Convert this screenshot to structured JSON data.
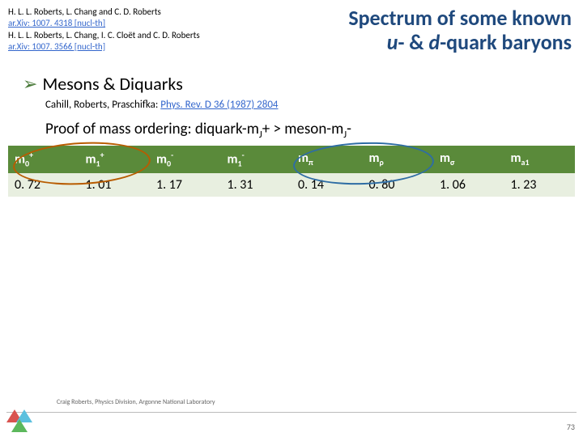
{
  "references": {
    "line1": "H. L. L. Roberts, L. Chang and C. D. Roberts",
    "link1": "ar.Xiv: 1007. 4318 [nucl-th]",
    "line2": "H. L. L. Roberts, L. Chang, I. C. Cloët and C. D. Roberts",
    "link2": "ar.Xiv: 1007. 3566 [nucl-th]"
  },
  "title": {
    "line1": "Spectrum of some known",
    "u": "u",
    "dash1": "- & ",
    "d": "d",
    "rest": "-quark baryons"
  },
  "bullet": {
    "text": "Mesons & Diquarks"
  },
  "subref": {
    "authors": "Cahill, Roberts, Praschifka: ",
    "cite": "Phys. Rev. D 36 (1987) 2804"
  },
  "proof": "Proof of mass ordering: diquark-m",
  "proof_sub1": "J",
  "proof_mid": "+ > meson-m",
  "proof_sub2": "J",
  "proof_end": "-",
  "table": {
    "headers": [
      {
        "base": "m",
        "sub": "0",
        "sup": "+"
      },
      {
        "base": "m",
        "sub": "1",
        "sup": "+"
      },
      {
        "base": "m",
        "sub": "0",
        "sup": "-"
      },
      {
        "base": "m",
        "sub": "1",
        "sup": "-"
      },
      {
        "base": "m",
        "sub": "π",
        "sup": ""
      },
      {
        "base": "m",
        "sub": "ρ",
        "sup": ""
      },
      {
        "base": "m",
        "sub": "σ",
        "sup": ""
      },
      {
        "base": "m",
        "sub": "a1",
        "sup": ""
      }
    ],
    "row": [
      "0. 72",
      "1. 01",
      "1. 17",
      "1. 31",
      "0. 14",
      "0. 80",
      "1. 06",
      "1. 23"
    ],
    "header_bg": "#5a8a3a",
    "header_fg": "#ffffff",
    "row_bg": "#e8efe0"
  },
  "ovals": {
    "c1": "#b85c00",
    "c2": "#2e6da4"
  },
  "footer": "Craig Roberts, Physics Division, Argonne National Laboratory",
  "pagenum": "73"
}
